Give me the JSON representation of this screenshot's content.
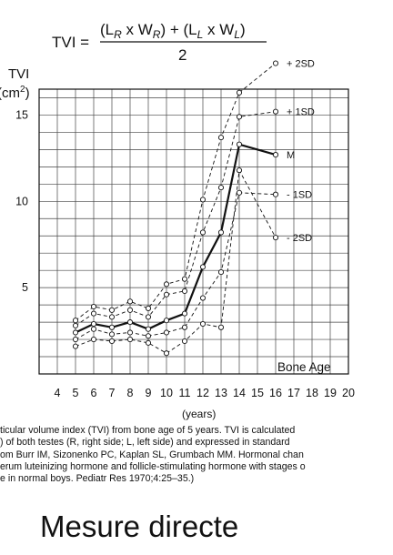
{
  "formula": {
    "lhs": "TVI =",
    "numerator_parts": [
      "(L",
      "R",
      " x W",
      "R",
      ") + (L",
      "L",
      " x W",
      "L",
      ")"
    ],
    "denominator": "2"
  },
  "chart_data": {
    "type": "line",
    "ylabel_line1": "TVI",
    "ylabel_line2_prefix": "(cm",
    "ylabel_line2_sup": "2",
    "ylabel_line2_suffix": ")",
    "xlabel_inside": "Bone Age",
    "xlabel_below": "(years)",
    "xlim": [
      3,
      20
    ],
    "ylim": [
      0,
      16.5
    ],
    "x_ticks": [
      4,
      5,
      6,
      7,
      8,
      9,
      10,
      11,
      12,
      13,
      14,
      15,
      16,
      17,
      18,
      19,
      20
    ],
    "y_ticks": [
      5,
      10,
      15
    ],
    "grid": true,
    "x": [
      5,
      6,
      7,
      8,
      9,
      10,
      11,
      12,
      13,
      14,
      16
    ],
    "series": [
      {
        "name": "+ 2SD",
        "style": "dashed",
        "values": [
          3.1,
          3.9,
          3.7,
          4.2,
          3.8,
          5.2,
          5.5,
          10.1,
          13.7,
          16.3,
          18.0
        ]
      },
      {
        "name": "+ 1SD",
        "style": "dashed",
        "values": [
          2.8,
          3.5,
          3.3,
          3.7,
          3.3,
          4.6,
          4.8,
          8.2,
          10.8,
          14.9,
          15.2
        ]
      },
      {
        "name": "M",
        "style": "solid",
        "values": [
          2.4,
          2.9,
          2.7,
          3.0,
          2.6,
          3.1,
          3.5,
          6.2,
          8.2,
          13.3,
          12.7
        ]
      },
      {
        "name": "- 1SD",
        "style": "dashed",
        "values": [
          2.0,
          2.6,
          2.3,
          2.4,
          2.2,
          2.4,
          2.7,
          4.4,
          5.9,
          10.5,
          10.4
        ]
      },
      {
        "name": "- 2SD",
        "style": "dashed",
        "values": [
          1.6,
          2.0,
          1.9,
          2.0,
          1.8,
          1.2,
          1.9,
          2.9,
          2.7,
          11.8,
          7.9
        ]
      }
    ]
  },
  "caption": {
    "lines": [
      "ticular volume index (TVI) from bone age of 5 years. TVI is calculated",
      ") of both testes (R, right side; L, left side) and expressed in standard",
      "om Burr IM, Sizonenko PC, Kaplan SL, Grumbach MM. Hormonal chan",
      "erum luteinizing hormone and follicle-stimulating hormone with stages o",
      "e in normal boys. Pediatr Res 1970;4:25–35.)"
    ]
  },
  "footer": "Mesure directe"
}
